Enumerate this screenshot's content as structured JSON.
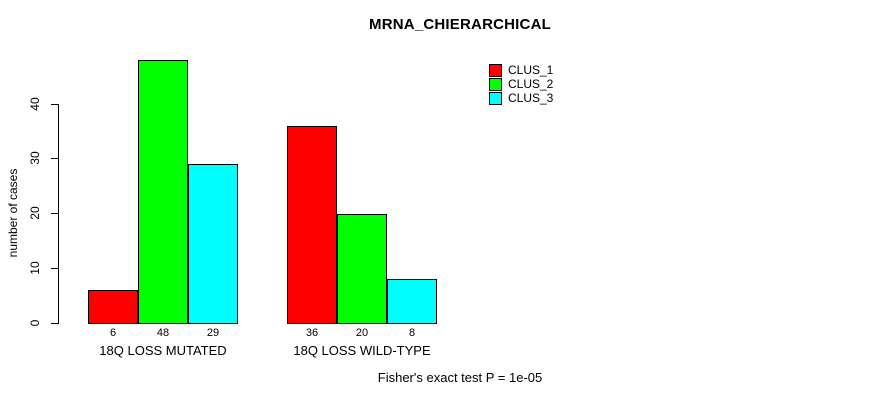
{
  "chart_data": {
    "type": "bar",
    "title": "MRNA_CHIERARCHICAL",
    "ylabel": "number of cases",
    "xlabel": "",
    "annotation": "Fisher's exact test P = 1e-05",
    "categories": [
      "18Q LOSS MUTATED",
      "18Q LOSS WILD-TYPE"
    ],
    "series": [
      {
        "name": "CLUS_1",
        "color": "#FF0000",
        "values": [
          6,
          36
        ]
      },
      {
        "name": "CLUS_2",
        "color": "#00FF00",
        "values": [
          48,
          20
        ]
      },
      {
        "name": "CLUS_3",
        "color": "#00FFFF",
        "values": [
          29,
          8
        ]
      }
    ],
    "ylim": [
      0,
      40
    ],
    "yticks": [
      0,
      10,
      20,
      30,
      40
    ],
    "grid": false,
    "legend_position": "top-right",
    "bar_border_color": "#000000",
    "axis_color": "#000000",
    "background": "#FFFFFF"
  }
}
